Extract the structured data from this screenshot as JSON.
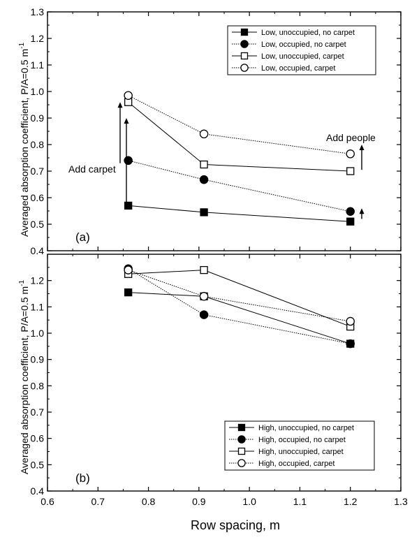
{
  "chart_data": [
    {
      "type": "line",
      "panel_label": "(a)",
      "ylabel": "Averaged absorption coefficient, P/A=0.5 m",
      "ylabel_sup": "-1",
      "ylim": [
        0.4,
        1.3
      ],
      "yticks": [
        "0.4",
        "0.5",
        "0.6",
        "0.7",
        "0.8",
        "0.9",
        "1.0",
        "1.1",
        "1.2",
        "1.3"
      ],
      "x": [
        0.76,
        0.91,
        1.2
      ],
      "series": [
        {
          "name": "Low, unoccupied, no carpet",
          "marker": "square-filled",
          "dash": "solid",
          "values": [
            0.57,
            0.545,
            0.51
          ]
        },
        {
          "name": "Low, occupied, no carpet",
          "marker": "circle-filled",
          "dash": "dotted",
          "values": [
            0.74,
            0.668,
            0.548
          ]
        },
        {
          "name": "Low, unoccupied, carpet",
          "marker": "square-open",
          "dash": "solid",
          "values": [
            0.96,
            0.725,
            0.7
          ]
        },
        {
          "name": "Low, occupied, carpet",
          "marker": "circle-open",
          "dash": "dotted",
          "values": [
            0.985,
            0.84,
            0.765
          ]
        }
      ],
      "annotations": [
        "Add carpet",
        "Add people"
      ]
    },
    {
      "type": "line",
      "panel_label": "(b)",
      "ylabel": "Averaged absorption coefficient, P/A=0.5 m",
      "ylabel_sup": "-1",
      "xlabel": "Row spacing, m",
      "xlim": [
        0.6,
        1.3
      ],
      "xticks": [
        "0.6",
        "0.7",
        "0.8",
        "0.9",
        "1.0",
        "1.1",
        "1.2",
        "1.3"
      ],
      "ylim": [
        0.4,
        1.3
      ],
      "yticks": [
        "0.4",
        "0.5",
        "0.6",
        "0.7",
        "0.8",
        "0.9",
        "1.0",
        "1.1",
        "1.2"
      ],
      "x": [
        0.76,
        0.91,
        1.2
      ],
      "series": [
        {
          "name": "High, unoccupied, no carpet",
          "marker": "square-filled",
          "dash": "solid",
          "values": [
            1.155,
            1.14,
            0.96
          ]
        },
        {
          "name": "High, occupied, no carpet",
          "marker": "circle-filled",
          "dash": "dotted",
          "values": [
            1.245,
            1.07,
            0.96
          ]
        },
        {
          "name": "High, unoccupied, carpet",
          "marker": "square-open",
          "dash": "solid",
          "values": [
            1.225,
            1.24,
            1.025
          ]
        },
        {
          "name": "High, occupied, carpet",
          "marker": "circle-open",
          "dash": "dotted",
          "values": [
            1.24,
            1.14,
            1.045
          ]
        }
      ]
    }
  ]
}
